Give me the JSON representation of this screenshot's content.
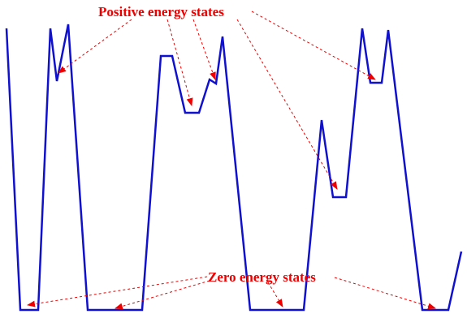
{
  "labels": {
    "positive": "Positive energy states",
    "zero": "Zero energy states"
  },
  "colors": {
    "curve": "#1010d0",
    "annotation": "#ee0000",
    "background": "#ffffff"
  }
}
